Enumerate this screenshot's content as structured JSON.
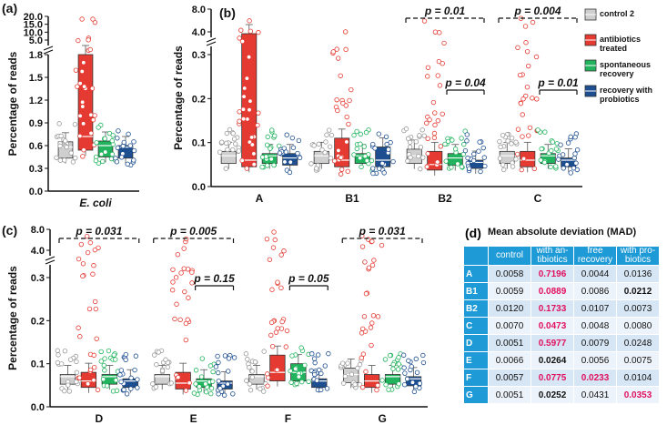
{
  "colors": {
    "control": "#cfcfcf",
    "antibiotics": "#e53a32",
    "spontaneous": "#21b35d",
    "probiotics": "#1d4e8f",
    "accent": "#1e9ad6",
    "highlight": "#e0115f"
  },
  "legend": [
    {
      "label": "control 2",
      "key": "control"
    },
    {
      "label": "antibiotics treated",
      "key": "antibiotics"
    },
    {
      "label": "spontaneous recovery",
      "key": "spontaneous"
    },
    {
      "label": "recovery with probiotics",
      "key": "probiotics"
    }
  ],
  "chart_data": [
    {
      "panel": "(a)",
      "type": "scatter",
      "ylabel": "Percentage of reads",
      "ylim": [
        0,
        1.8
      ],
      "broken_axis": true,
      "ticks_lower": [
        "0.0",
        "0.3",
        "0.6",
        "0.9",
        "1.2",
        "1.5",
        "1.8"
      ],
      "ticks_upper": [
        "5.0",
        "10.0",
        "15.0",
        "20.0"
      ],
      "categories": [
        "E. coli"
      ],
      "groups": [
        {
          "category": "E. coli",
          "medians": [
            0.58,
            0.72,
            0.6,
            0.58
          ],
          "upper": [
            0.65,
            1.8,
            0.66,
            0.6
          ]
        }
      ]
    },
    {
      "panel": "(b)",
      "type": "scatter",
      "ylabel": "Percentage of reads",
      "ylim": [
        0,
        0.3
      ],
      "broken_axis": true,
      "ticks_lower": [
        "0.0",
        "0.1",
        "0.2",
        "0.3"
      ],
      "ticks_upper": [
        "4.0",
        "8.0"
      ],
      "categories": [
        "A",
        "B1",
        "B2",
        "C"
      ],
      "groups": [
        {
          "category": "A",
          "medians": [
            0.07,
            0.06,
            0.07,
            0.065
          ],
          "upper": [
            0.08,
            0.36,
            0.075,
            0.075
          ]
        },
        {
          "category": "B1",
          "medians": [
            0.07,
            0.06,
            0.07,
            0.06
          ],
          "upper": [
            0.08,
            0.11,
            0.075,
            0.09
          ]
        },
        {
          "category": "B2",
          "medians": [
            0.07,
            0.05,
            0.065,
            0.055
          ],
          "upper": [
            0.085,
            0.08,
            0.075,
            0.06
          ]
        },
        {
          "category": "C",
          "medians": [
            0.07,
            0.06,
            0.07,
            0.06
          ],
          "upper": [
            0.08,
            0.08,
            0.075,
            0.065
          ]
        }
      ],
      "annotations": [
        {
          "text": "p = 0.01",
          "from": "B2 control",
          "to": "B2 probiotics",
          "style": "dashed"
        },
        {
          "text": "p = 0.04",
          "from": "B2 spontaneous",
          "to": "B2 probiotics",
          "style": "solid"
        },
        {
          "text": "p = 0.004",
          "from": "C control",
          "to": "C probiotics",
          "style": "dashed"
        },
        {
          "text": "p = 0.01",
          "from": "C spontaneous",
          "to": "C probiotics",
          "style": "solid"
        }
      ]
    },
    {
      "panel": "(c)",
      "type": "scatter",
      "ylabel": "Percentage of reads",
      "ylim": [
        0,
        0.3
      ],
      "broken_axis": true,
      "ticks_lower": [
        "0.0",
        "0.1",
        "0.2",
        "0.3"
      ],
      "ticks_upper": [
        "4.0",
        "8.0"
      ],
      "categories": [
        "D",
        "E",
        "F",
        "G"
      ],
      "groups": [
        {
          "category": "D",
          "medians": [
            0.07,
            0.06,
            0.07,
            0.06
          ],
          "upper": [
            0.075,
            0.08,
            0.075,
            0.065
          ]
        },
        {
          "category": "E",
          "medians": [
            0.07,
            0.055,
            0.06,
            0.055
          ],
          "upper": [
            0.075,
            0.08,
            0.065,
            0.06
          ]
        },
        {
          "category": "F",
          "medians": [
            0.07,
            0.08,
            0.08,
            0.06
          ],
          "upper": [
            0.075,
            0.12,
            0.1,
            0.065
          ]
        },
        {
          "category": "G",
          "medians": [
            0.075,
            0.06,
            0.07,
            0.065
          ],
          "upper": [
            0.09,
            0.075,
            0.075,
            0.07
          ]
        }
      ],
      "annotations": [
        {
          "text": "p = 0.031",
          "from": "D control",
          "to": "D probiotics",
          "style": "dashed"
        },
        {
          "text": "p = 0.005",
          "from": "E control",
          "to": "E probiotics",
          "style": "dashed"
        },
        {
          "text": "p = 0.15",
          "from": "E spontaneous",
          "to": "E probiotics",
          "style": "solid"
        },
        {
          "text": "p = 0.05",
          "from": "F spontaneous",
          "to": "F probiotics",
          "style": "solid"
        },
        {
          "text": "p = 0.031",
          "from": "G control",
          "to": "G probiotics",
          "style": "dashed"
        }
      ]
    },
    {
      "panel": "(d)",
      "type": "table",
      "title": "Mean absolute deviation (MAD)",
      "columns": [
        "control",
        "with an-tibiotics",
        "free recovery",
        "with pro-biotics"
      ],
      "rows": [
        {
          "label": "A",
          "values": [
            "0.0058",
            "0.7196",
            "0.0044",
            "0.0136"
          ],
          "style": [
            "",
            "hl",
            "",
            ""
          ]
        },
        {
          "label": "B1",
          "values": [
            "0.0059",
            "0.0889",
            "0.0086",
            "0.0212"
          ],
          "style": [
            "",
            "hl",
            "",
            "bd"
          ]
        },
        {
          "label": "B2",
          "values": [
            "0.0120",
            "0.1733",
            "0.0107",
            "0.0073"
          ],
          "style": [
            "",
            "hl",
            "",
            ""
          ]
        },
        {
          "label": "C",
          "values": [
            "0.0070",
            "0.0473",
            "0.0048",
            "0.0080"
          ],
          "style": [
            "",
            "hl",
            "",
            ""
          ]
        },
        {
          "label": "D",
          "values": [
            "0.0051",
            "0.5977",
            "0.0079",
            "0.0248"
          ],
          "style": [
            "",
            "hl",
            "",
            ""
          ]
        },
        {
          "label": "E",
          "values": [
            "0.0066",
            "0.0264",
            "0.0056",
            "0.0075"
          ],
          "style": [
            "",
            "bd",
            "",
            ""
          ]
        },
        {
          "label": "F",
          "values": [
            "0.0057",
            "0.0775",
            "0.0233",
            "0.0104"
          ],
          "style": [
            "",
            "hl",
            "hl",
            ""
          ]
        },
        {
          "label": "G",
          "values": [
            "0.0051",
            "0.0252",
            "0.0431",
            "0.0353"
          ],
          "style": [
            "",
            "bd",
            "",
            "hl"
          ]
        }
      ]
    }
  ]
}
